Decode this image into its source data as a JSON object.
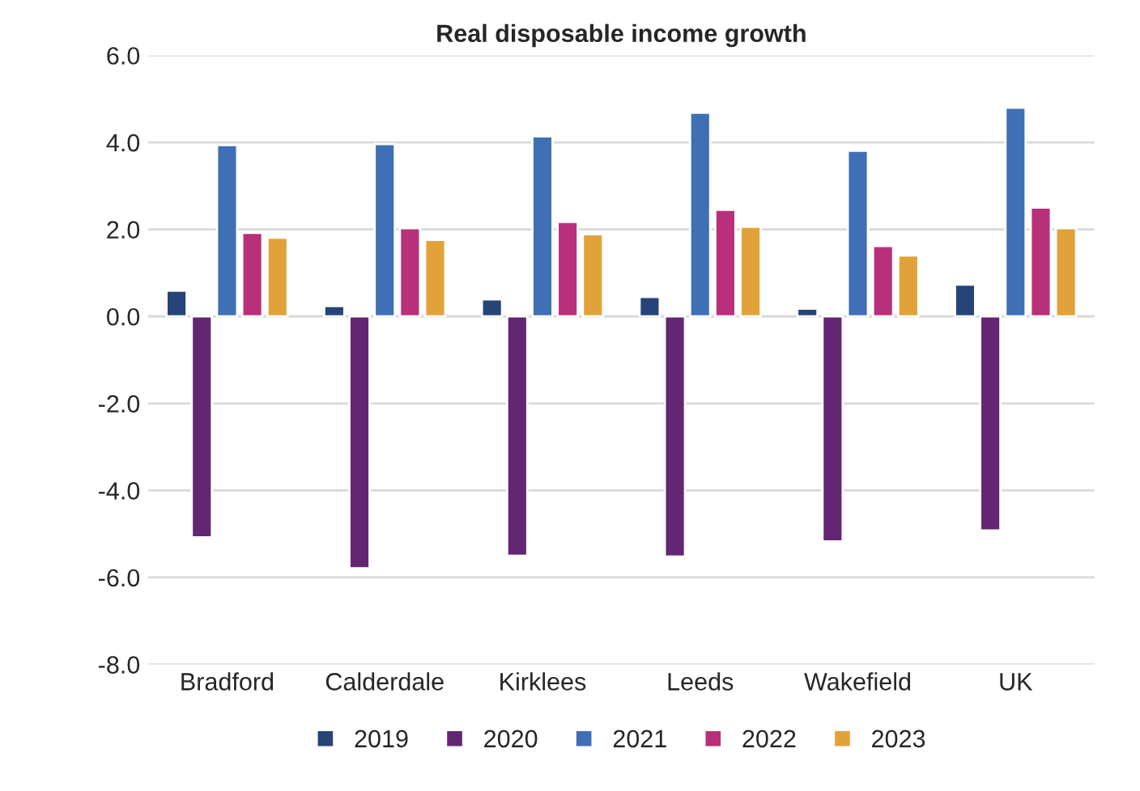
{
  "chart_data": {
    "type": "bar",
    "title": "Real disposable income growth",
    "categories": [
      "Bradford",
      "Calderdale",
      "Kirklees",
      "Leeds",
      "Wakefield",
      "UK"
    ],
    "series": [
      {
        "name": "2019",
        "color": "#264478",
        "values": [
          0.59,
          0.24,
          0.39,
          0.45,
          0.18,
          0.73
        ]
      },
      {
        "name": "2020",
        "color": "#632673",
        "values": [
          -5.08,
          -5.79,
          -5.5,
          -5.52,
          -5.17,
          -4.92
        ]
      },
      {
        "name": "2021",
        "color": "#3f6fb5",
        "values": [
          3.94,
          3.96,
          4.14,
          4.68,
          3.81,
          4.8
        ]
      },
      {
        "name": "2022",
        "color": "#b9307a",
        "values": [
          1.92,
          2.03,
          2.17,
          2.45,
          1.62,
          2.5
        ]
      },
      {
        "name": "2023",
        "color": "#e2a23a",
        "values": [
          1.81,
          1.76,
          1.89,
          2.06,
          1.4,
          2.03
        ]
      }
    ],
    "ylim": [
      -8,
      6
    ],
    "yticks": [
      {
        "value": -8,
        "label": "-8.0"
      },
      {
        "value": -6,
        "label": "-6.0"
      },
      {
        "value": -4,
        "label": "-4.0"
      },
      {
        "value": -2,
        "label": "-2.0"
      },
      {
        "value": 0,
        "label": "0.0"
      },
      {
        "value": 2,
        "label": "2.0"
      },
      {
        "value": 4,
        "label": "4.0"
      },
      {
        "value": 6,
        "label": "6.0"
      }
    ],
    "grid": "y",
    "legend": "bottom"
  }
}
